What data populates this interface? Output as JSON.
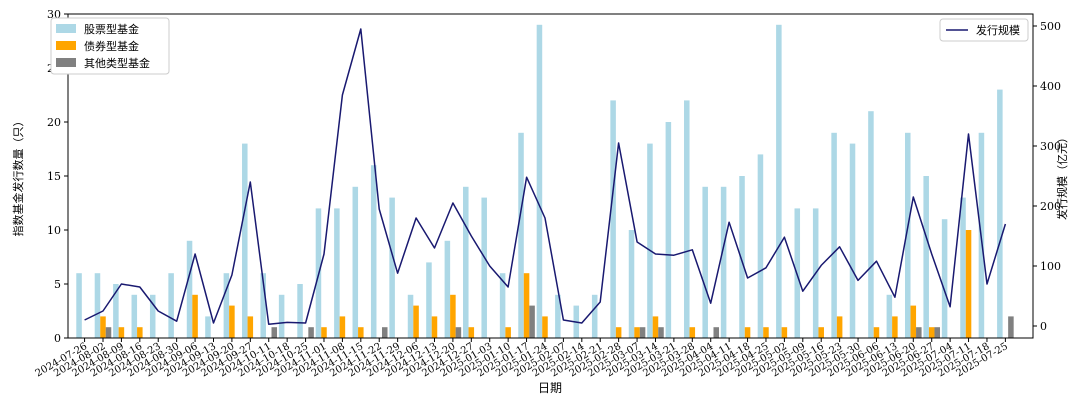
{
  "chart_data": {
    "type": "bar",
    "xlabel": "日期",
    "ylabel_left": "指数基金发行数量（只）",
    "ylabel_right": "发行规模（亿元）",
    "ylim_left": [
      0,
      30
    ],
    "ylim_right": [
      -20,
      520
    ],
    "yticks_left": [
      0,
      5,
      10,
      15,
      20,
      25,
      30
    ],
    "yticks_right": [
      0,
      100,
      200,
      300,
      400,
      500
    ],
    "legend_left_position": "top-left",
    "legend_right_position": "top-right",
    "grid": false,
    "colors": {
      "stock": "#add8e6",
      "bond": "#ffa500",
      "other": "#808080",
      "scale": "#191970"
    },
    "categories": [
      "2024-07-26",
      "2024-08-02",
      "2024-08-09",
      "2024-08-16",
      "2024-08-23",
      "2024-08-30",
      "2024-09-06",
      "2024-09-13",
      "2024-09-20",
      "2024-09-27",
      "2024-10-11",
      "2024-10-18",
      "2024-10-25",
      "2024-11-01",
      "2024-11-08",
      "2024-11-15",
      "2024-11-22",
      "2024-11-29",
      "2024-12-06",
      "2024-12-13",
      "2024-12-20",
      "2024-12-27",
      "2025-01-03",
      "2025-01-10",
      "2025-01-17",
      "2025-01-24",
      "2025-02-07",
      "2025-02-14",
      "2025-02-21",
      "2025-02-28",
      "2025-03-07",
      "2025-03-14",
      "2025-03-21",
      "2025-03-28",
      "2025-04-04",
      "2025-04-11",
      "2025-04-18",
      "2025-04-25",
      "2025-05-02",
      "2025-05-09",
      "2025-05-16",
      "2025-05-23",
      "2025-05-30",
      "2025-06-06",
      "2025-06-13",
      "2025-06-20",
      "2025-06-27",
      "2025-07-04",
      "2025-07-11",
      "2025-07-18",
      "2025-07-25"
    ],
    "series": [
      {
        "name": "股票型基金",
        "kind": "bar",
        "axis": "left",
        "values": [
          6,
          6,
          5,
          4,
          4,
          6,
          9,
          2,
          6,
          18,
          6,
          4,
          5,
          12,
          12,
          14,
          16,
          13,
          4,
          7,
          9,
          14,
          13,
          6,
          19,
          29,
          4,
          3,
          4,
          22,
          10,
          18,
          20,
          22,
          14,
          14,
          15,
          17,
          29,
          12,
          12,
          19,
          18,
          21,
          4,
          19,
          15,
          11,
          13,
          19,
          23
        ]
      },
      {
        "name": "债券型基金",
        "kind": "bar",
        "axis": "left",
        "values": [
          0,
          2,
          1,
          1,
          0,
          0,
          4,
          0,
          3,
          2,
          0,
          0,
          0,
          1,
          2,
          1,
          0,
          0,
          3,
          2,
          4,
          1,
          0,
          1,
          6,
          2,
          0,
          0,
          0,
          1,
          1,
          2,
          0,
          1,
          0,
          0,
          1,
          1,
          1,
          0,
          1,
          2,
          0,
          1,
          2,
          3,
          1,
          0,
          10,
          0,
          0
        ]
      },
      {
        "name": "其他类型基金",
        "kind": "bar",
        "axis": "left",
        "values": [
          0,
          1,
          0,
          0,
          0,
          0,
          0,
          0,
          0,
          0,
          1,
          0,
          1,
          0,
          0,
          0,
          1,
          0,
          0,
          0,
          1,
          0,
          0,
          0,
          3,
          0,
          0,
          0,
          0,
          0,
          1,
          1,
          0,
          0,
          1,
          0,
          0,
          0,
          0,
          0,
          0,
          0,
          0,
          0,
          0,
          1,
          1,
          0,
          0,
          0,
          2
        ]
      },
      {
        "name": "发行规模",
        "kind": "line",
        "axis": "right",
        "values": [
          10,
          25,
          70,
          65,
          25,
          8,
          120,
          5,
          85,
          240,
          3,
          6,
          5,
          120,
          385,
          495,
          195,
          88,
          180,
          130,
          205,
          150,
          100,
          65,
          248,
          180,
          10,
          5,
          40,
          305,
          140,
          120,
          118,
          127,
          38,
          173,
          80,
          97,
          148,
          58,
          101,
          132,
          76,
          108,
          48,
          215,
          120,
          32,
          320,
          70,
          170
        ]
      }
    ]
  }
}
